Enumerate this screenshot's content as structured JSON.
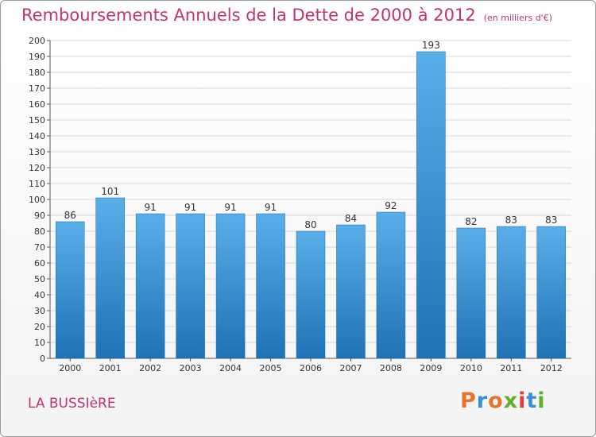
{
  "header": {
    "title": "Remboursements Annuels de la Dette de 2000 à 2012",
    "unit": "(en milliers d'€)"
  },
  "footer": {
    "town": "LA BUSSIèRE",
    "brand": "Proxiti",
    "brand_colors": [
      "#e8742a",
      "#3a8fd6",
      "#e8742a",
      "#5fae2e",
      "#d94040",
      "#3a8fd6",
      "#5fae2e"
    ]
  },
  "colors": {
    "bar_top": "#5aaee8",
    "bar_bottom": "#1f72b4",
    "grid": "#d8d8d8",
    "title": "#c4336e"
  },
  "chart_data": {
    "type": "bar",
    "categories": [
      "2000",
      "2001",
      "2002",
      "2003",
      "2004",
      "2005",
      "2006",
      "2007",
      "2008",
      "2009",
      "2010",
      "2011",
      "2012"
    ],
    "values": [
      86,
      101,
      91,
      91,
      91,
      91,
      80,
      84,
      92,
      193,
      82,
      83,
      83
    ],
    "ylim": [
      0,
      200
    ],
    "ytick_step": 10,
    "grid": true
  }
}
